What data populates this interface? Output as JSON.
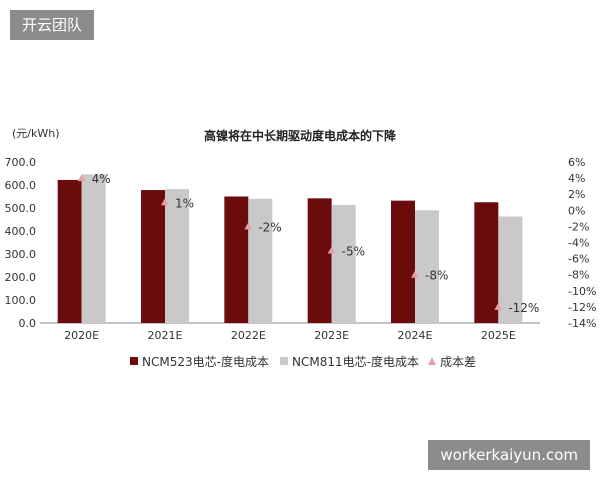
{
  "watermarks": {
    "top": "开云团队",
    "bottom": "workerkaiyun.com"
  },
  "chart_data": {
    "type": "bar",
    "title": "高镍将在中长期驱动度电成本的下降",
    "ylabel": "(元/kWh)",
    "categories": [
      "2020E",
      "2021E",
      "2022E",
      "2023E",
      "2024E",
      "2025E"
    ],
    "ylim": [
      0,
      700
    ],
    "y_ticks": [
      "0.0",
      "100.0",
      "200.0",
      "300.0",
      "400.0",
      "500.0",
      "600.0",
      "700.0"
    ],
    "y2lim": [
      -14,
      6
    ],
    "y2_ticks": [
      "-14%",
      "-12%",
      "-10%",
      "-8%",
      "-6%",
      "-4%",
      "-2%",
      "0%",
      "2%",
      "4%",
      "6%"
    ],
    "series": [
      {
        "name": "NCM523电芯-度电成本",
        "values": [
          622,
          578,
          550,
          542,
          532,
          525
        ],
        "color": "#6b0b0b"
      },
      {
        "name": "NCM811电芯-度电成本",
        "values": [
          646,
          582,
          540,
          513,
          490,
          463
        ],
        "color": "#c9c9c9"
      }
    ],
    "diff_series": {
      "name": "成本差",
      "values": [
        4,
        1,
        -2,
        -5,
        -8,
        -12
      ],
      "labels": [
        "4%",
        "1%",
        "-2%",
        "-5%",
        "-8%",
        "-12%"
      ],
      "color": "#e8a0a8"
    },
    "grid": false,
    "legend_position": "bottom"
  }
}
